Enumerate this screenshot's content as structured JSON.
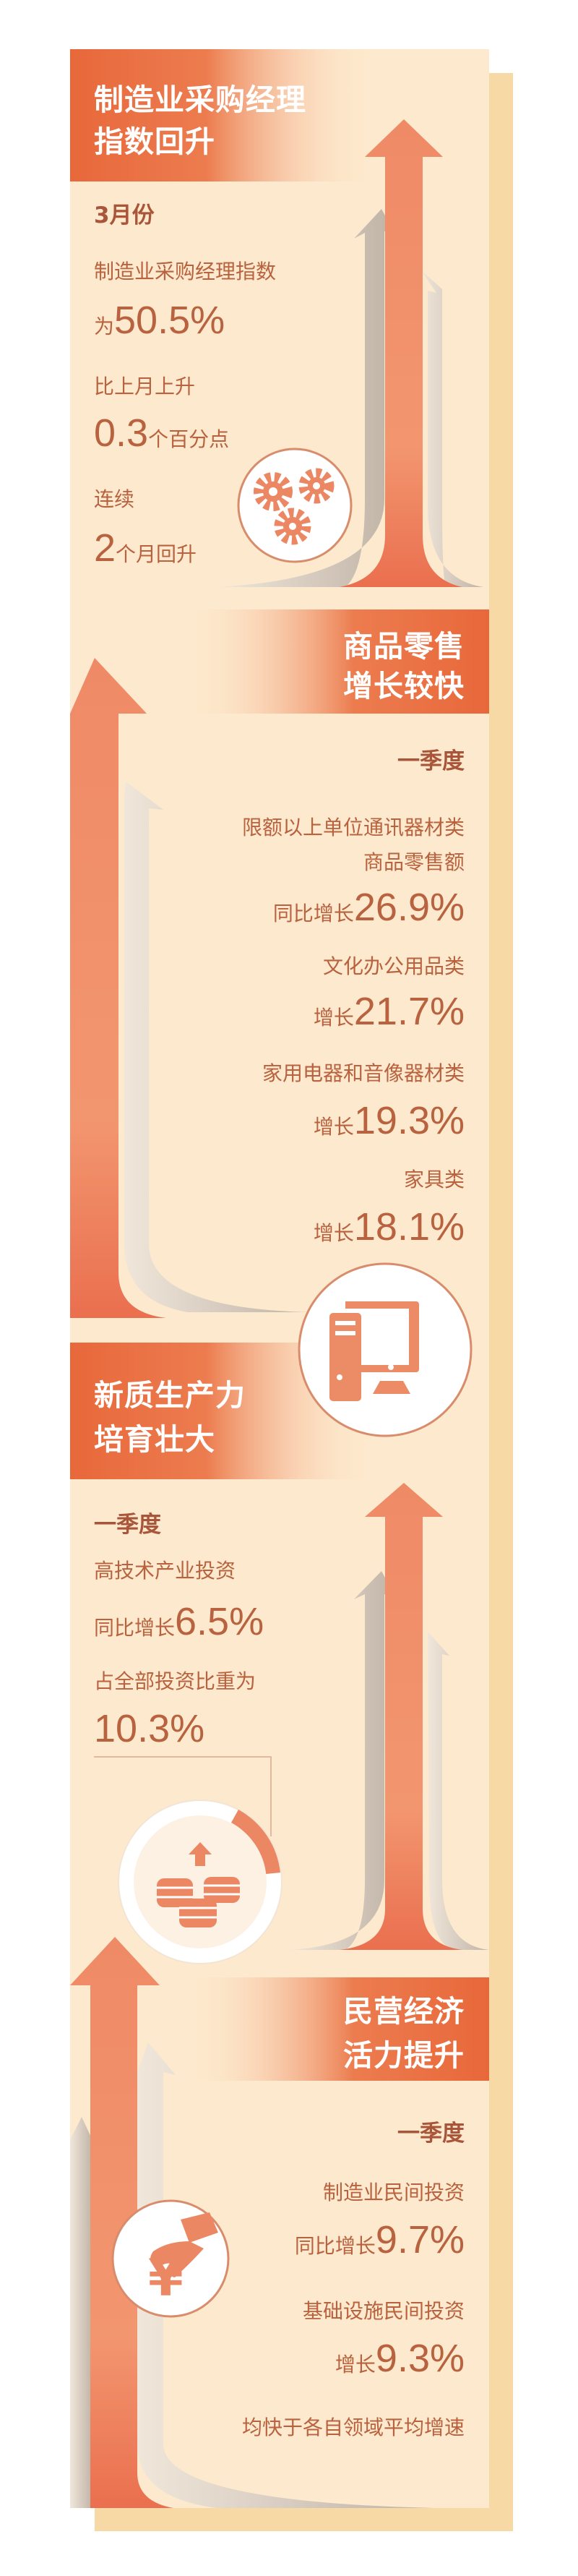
{
  "colors": {
    "header": "#e8683a",
    "background": "#fde9cd",
    "backing": "#f7d9a6",
    "text": "#b8623f",
    "arrow": "#ee8a66",
    "arrow_gray": "#cfc5b8"
  },
  "sections": [
    {
      "title": [
        "制造业采购经理",
        "指数回升"
      ],
      "period": "3月份",
      "items": [
        {
          "label": "制造业采购经理指数",
          "prefix": "为",
          "value": "50.5%"
        },
        {
          "label": "比上月上升",
          "value": "0.3",
          "suffix": "个百分点"
        },
        {
          "label": "连续",
          "value": "2",
          "suffix": "个月回升"
        }
      ],
      "icon": "gears-icon"
    },
    {
      "title": [
        "商品零售",
        "增长较快"
      ],
      "period": "一季度",
      "items": [
        {
          "label": [
            "限额以上单位通讯器材类",
            "商品零售额"
          ],
          "prefix": "同比增长",
          "value": "26.9%"
        },
        {
          "label": "文化办公用品类",
          "prefix": "增长",
          "value": "21.7%"
        },
        {
          "label": "家用电器和音像器材类",
          "prefix": "增长",
          "value": "19.3%"
        },
        {
          "label": "家具类",
          "prefix": "增长",
          "value": "18.1%"
        }
      ],
      "icon": "computer-icon"
    },
    {
      "title": [
        "新质生产力",
        "培育壮大"
      ],
      "period": "一季度",
      "items": [
        {
          "label": "高技术产业投资",
          "prefix": "同比增长",
          "value": "6.5%"
        },
        {
          "label": "占全部投资比重为",
          "value": "10.3%"
        }
      ],
      "icon": "coins-up-icon",
      "share_ring": 10.3
    },
    {
      "title": [
        "民营经济",
        "活力提升"
      ],
      "period": "一季度",
      "items": [
        {
          "label": "制造业民间投资",
          "prefix": "同比增长",
          "value": "9.7%"
        },
        {
          "label": "基础设施民间投资",
          "prefix": "增长",
          "value": "9.3%"
        }
      ],
      "note": "均快于各自领域平均增速",
      "icon": "yen-hand-icon"
    }
  ]
}
